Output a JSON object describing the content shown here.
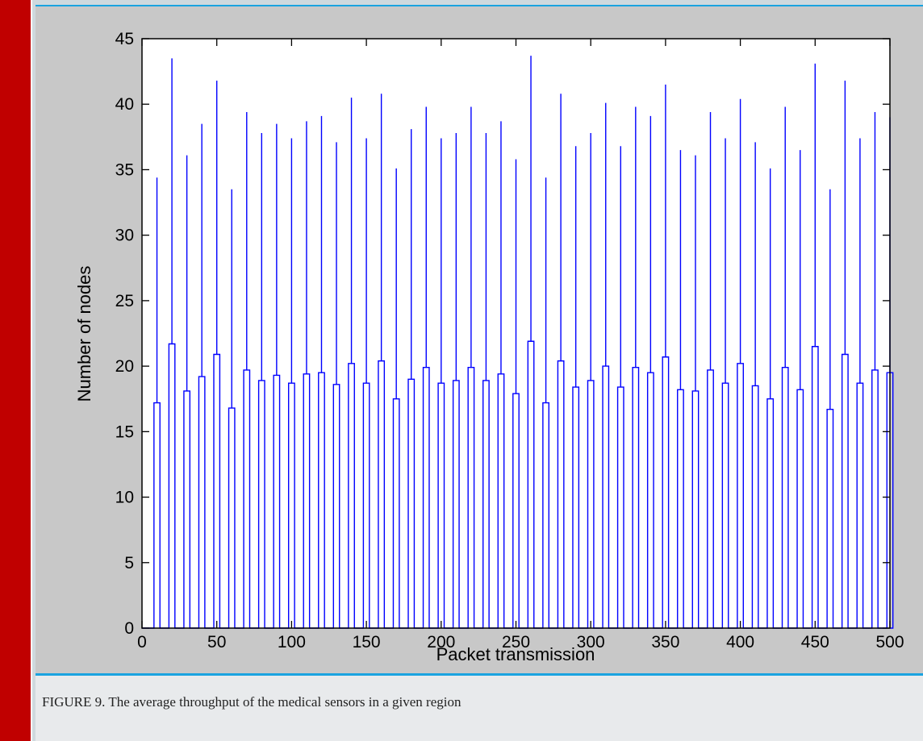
{
  "caption": "FIGURE 9. The average throughput of the medical sensors in a given region",
  "chart_data": {
    "type": "line",
    "title": "",
    "xlabel": "Packet transmission",
    "ylabel": "Number of nodes",
    "xlim": [
      0,
      500
    ],
    "ylim": [
      0,
      45
    ],
    "xticks": [
      0,
      50,
      100,
      150,
      200,
      250,
      300,
      350,
      400,
      450,
      500
    ],
    "yticks": [
      0,
      5,
      10,
      15,
      20,
      25,
      30,
      35,
      40,
      45
    ],
    "grid": false,
    "line_color": "#0000ff",
    "series": [
      {
        "x": [
          10,
          20,
          30,
          40,
          50,
          60,
          70,
          80,
          90,
          100,
          110,
          120,
          130,
          140,
          150,
          160,
          170,
          180,
          190,
          200,
          210,
          220,
          230,
          240,
          250,
          260,
          270,
          280,
          290,
          300,
          310,
          320,
          330,
          340,
          350,
          360,
          370,
          380,
          390,
          400,
          410,
          420,
          430,
          440,
          450,
          460,
          470,
          480,
          490,
          500
        ],
        "peak": [
          34.4,
          43.5,
          36.1,
          38.5,
          41.8,
          33.5,
          39.4,
          37.8,
          38.5,
          37.4,
          38.7,
          39.1,
          37.1,
          40.5,
          37.4,
          40.8,
          35.1,
          38.1,
          39.8,
          37.4,
          37.8,
          39.8,
          37.8,
          38.7,
          35.8,
          43.7,
          34.4,
          40.8,
          36.8,
          37.8,
          40.1,
          36.8,
          39.8,
          39.1,
          41.5,
          36.5,
          36.1,
          39.4,
          37.4,
          40.4,
          37.1,
          35.1,
          39.8,
          36.5,
          43.1,
          33.5,
          41.8,
          37.4,
          39.4,
          39.0
        ],
        "mid": [
          17.2,
          21.7,
          18.1,
          19.2,
          20.9,
          16.8,
          19.7,
          18.9,
          19.3,
          18.7,
          19.4,
          19.5,
          18.6,
          20.2,
          18.7,
          20.4,
          17.5,
          19.0,
          19.9,
          18.7,
          18.9,
          19.9,
          18.9,
          19.4,
          17.9,
          21.9,
          17.2,
          20.4,
          18.4,
          18.9,
          20.0,
          18.4,
          19.9,
          19.5,
          20.7,
          18.2,
          18.1,
          19.7,
          18.7,
          20.2,
          18.5,
          17.5,
          19.9,
          18.2,
          21.5,
          16.7,
          20.9,
          18.7,
          19.7,
          19.5
        ]
      }
    ]
  }
}
